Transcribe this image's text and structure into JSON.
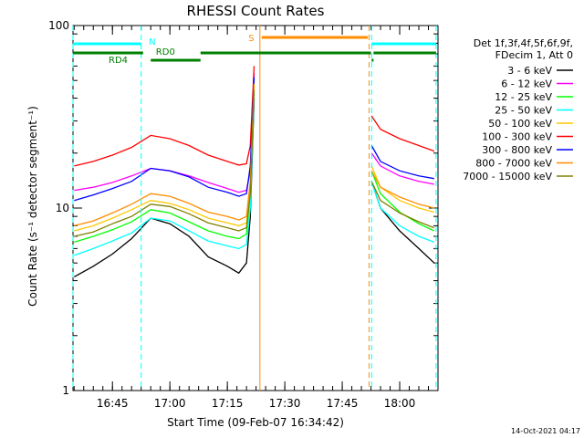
{
  "chart_data": {
    "type": "line",
    "title": "RHESSI Count Rates",
    "xlabel": "Start Time (09-Feb-07 16:34:42)",
    "ylabel": "Count Rate (s⁻¹ detector segment⁻¹)",
    "yscale": "log",
    "ylim": [
      1,
      100
    ],
    "xlim": [
      "16:34:42",
      "18:10:00"
    ],
    "x_ticks": [
      "16:45",
      "17:00",
      "17:15",
      "17:30",
      "17:45",
      "18:00"
    ],
    "y_ticks": [
      "1",
      "10",
      "100"
    ],
    "legend_header": [
      "Det 1f,3f,4f,5f,6f,9f,",
      "FDecim 1, Att 0"
    ],
    "legend_position": "right",
    "timestamp": "14-Oct-2021 04:17",
    "flag_labels": {
      "night": "N",
      "rd0": "RD0",
      "rd4": "RD4",
      "saa": "S"
    },
    "flag_colors": {
      "night": "#00ffff",
      "decimation": "#008000",
      "saa": "#ff8c00"
    },
    "gaps": [
      [
        "17:22:30",
        "17:52:40"
      ]
    ],
    "vlines": [
      {
        "time": "16:34:42",
        "color": "#00ffff",
        "style": "dashed"
      },
      {
        "time": "16:52:30",
        "color": "#00ffff",
        "style": "dashed"
      },
      {
        "time": "17:23:30",
        "color": "#ff8c00",
        "style": "solid"
      },
      {
        "time": "17:52:00",
        "color": "#ff8c00",
        "style": "dashed"
      },
      {
        "time": "17:52:40",
        "color": "#00ffff",
        "style": "dashed"
      },
      {
        "time": "18:09:30",
        "color": "#00ffff",
        "style": "dashed"
      }
    ],
    "x": [
      "16:35",
      "16:40",
      "16:45",
      "16:50",
      "16:55",
      "17:00",
      "17:05",
      "17:10",
      "17:15",
      "17:18",
      "17:20",
      "17:21",
      "17:22",
      "17:52:40",
      "17:55",
      "18:00",
      "18:05",
      "18:09"
    ],
    "series": [
      {
        "name": "3 - 6 keV",
        "color": "#000000",
        "values": [
          4.2,
          4.8,
          5.6,
          6.8,
          8.8,
          8.2,
          7.0,
          5.4,
          4.8,
          4.4,
          5.0,
          9.0,
          40,
          14,
          10,
          7.5,
          6.0,
          5.0
        ]
      },
      {
        "name": "6 - 12 keV",
        "color": "#ff00ff",
        "values": [
          12.5,
          13.0,
          13.8,
          15.0,
          16.5,
          16.0,
          15.0,
          13.8,
          12.8,
          12.2,
          12.5,
          16,
          55,
          20,
          17,
          15,
          14,
          13.5
        ]
      },
      {
        "name": "12 - 25 keV",
        "color": "#00ff00",
        "values": [
          6.5,
          7.0,
          7.6,
          8.4,
          9.8,
          9.4,
          8.4,
          7.5,
          7.0,
          6.8,
          7.2,
          12,
          45,
          16,
          12,
          9.5,
          8.2,
          7.5
        ]
      },
      {
        "name": "25 - 50 keV",
        "color": "#00ffff",
        "values": [
          5.5,
          6.0,
          6.6,
          7.3,
          8.8,
          8.5,
          7.5,
          6.6,
          6.2,
          6.0,
          6.3,
          10,
          42,
          14,
          10,
          8.0,
          7.0,
          6.5
        ]
      },
      {
        "name": "50 - 100 keV",
        "color": "#ffc800",
        "values": [
          7.5,
          8.0,
          8.8,
          9.8,
          11.0,
          10.6,
          9.8,
          8.8,
          8.3,
          8.0,
          8.3,
          13,
          47,
          17,
          13,
          11,
          10,
          9.5
        ]
      },
      {
        "name": "100 - 300 keV",
        "color": "#ff0000",
        "values": [
          17,
          18,
          19.5,
          21.5,
          25,
          24,
          22,
          19.5,
          18,
          17.2,
          17.5,
          22,
          60,
          32,
          27,
          24,
          22,
          20.5
        ]
      },
      {
        "name": "300 - 800 keV",
        "color": "#0000ff",
        "values": [
          11,
          11.8,
          12.8,
          14,
          16.5,
          16,
          14.8,
          13,
          12.2,
          11.6,
          12,
          17,
          52,
          22,
          18,
          16,
          15,
          14.5
        ]
      },
      {
        "name": "800 - 7000 keV",
        "color": "#ff8c00",
        "values": [
          8,
          8.5,
          9.4,
          10.5,
          12,
          11.6,
          10.6,
          9.5,
          9,
          8.6,
          9,
          14,
          48,
          16,
          13,
          11.5,
          10.5,
          10
        ]
      },
      {
        "name": "7000 - 15000 keV",
        "color": "#808000",
        "values": [
          7,
          7.4,
          8.2,
          9,
          10.5,
          10.2,
          9.3,
          8.3,
          7.8,
          7.5,
          7.8,
          12,
          44,
          14,
          11,
          9.4,
          8.4,
          7.8
        ]
      }
    ]
  }
}
